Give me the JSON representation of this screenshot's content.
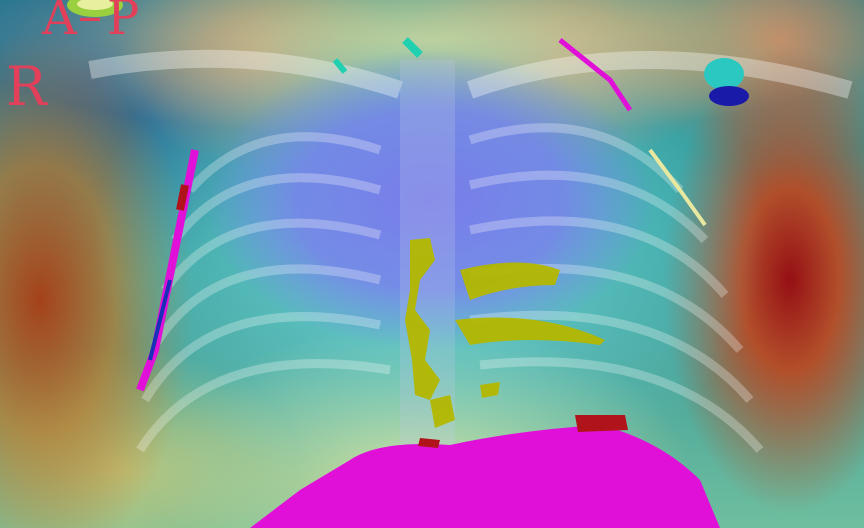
{
  "image": {
    "view_label_a": "A",
    "view_label_dash": "–",
    "view_label_p": "P",
    "side_marker": "R"
  },
  "colors": {
    "label_red": "#e2405a",
    "lung_overlay_blue": "#7f86e6",
    "heart_magenta": "#e010d8",
    "opacity_yellow_green": "#b4b800",
    "hot_red": "#b0141a",
    "cool_teal": "#2a8c8c"
  }
}
